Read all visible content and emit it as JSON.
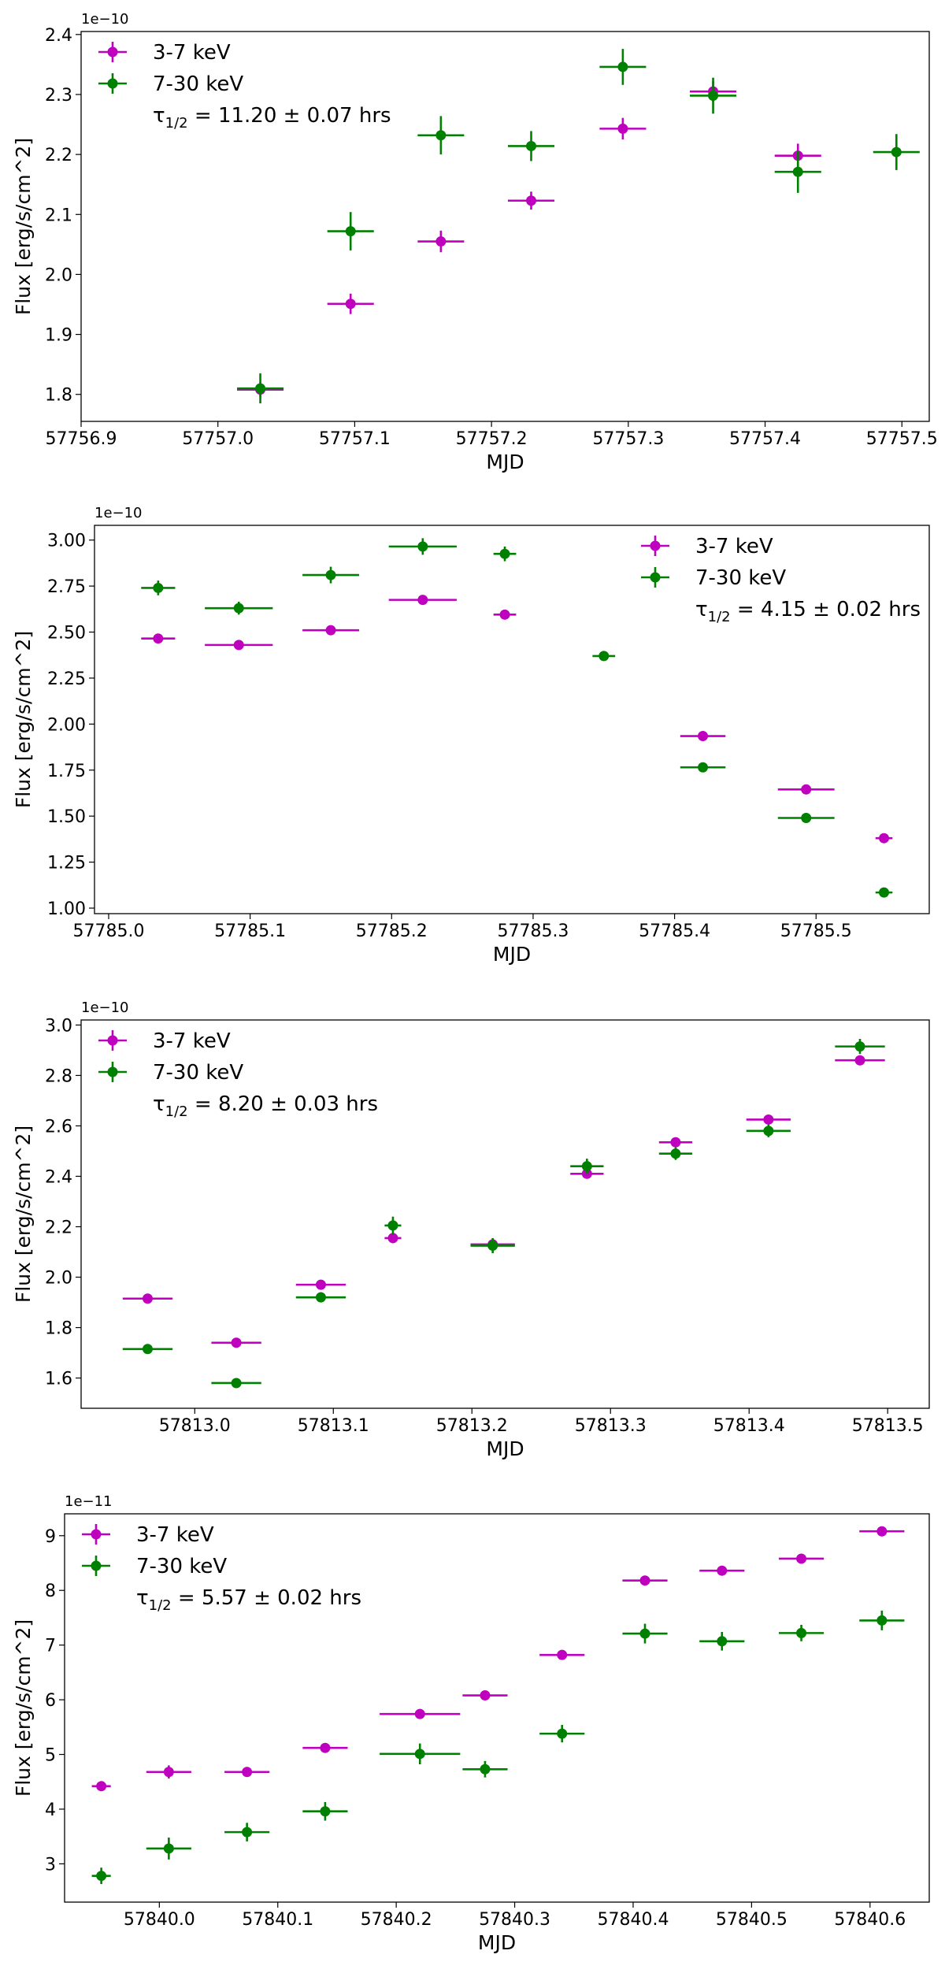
{
  "chart_data": [
    {
      "type": "scatter",
      "xlabel": "MJD",
      "ylabel": "Flux [erg/s/cm^2]",
      "offset_label": "1e−10",
      "annotation": "τ",
      "annotation_sub": "1/2",
      "annotation_rest": " = 11.20 ± 0.07 hrs",
      "xlim": [
        57756.9,
        57757.52
      ],
      "ylim": [
        1.755,
        2.405
      ],
      "xticks": [
        57756.9,
        57757.0,
        57757.1,
        57757.2,
        57757.3,
        57757.4,
        57757.5
      ],
      "xtick_labels": [
        "57756.9",
        "57757.0",
        "57757.1",
        "57757.2",
        "57757.3",
        "57757.4",
        "57757.5"
      ],
      "yticks": [
        1.8,
        1.9,
        2.0,
        2.1,
        2.2,
        2.3,
        2.4
      ],
      "ytick_labels": [
        "1.8",
        "1.9",
        "2.0",
        "2.1",
        "2.2",
        "2.3",
        "2.4"
      ],
      "legend_loc": "upper-left",
      "series": [
        {
          "name": "3-7 keV",
          "color": "#bf00bf",
          "x": [
            57757.031,
            57757.097,
            57757.163,
            57757.229,
            57757.296,
            57757.362,
            57757.424
          ],
          "y": [
            1.808,
            1.951,
            2.055,
            2.123,
            2.243,
            2.305,
            2.198
          ],
          "xerr": [
            0.017,
            0.017,
            0.017,
            0.017,
            0.017,
            0.017,
            0.017
          ],
          "yerr": [
            0.012,
            0.017,
            0.018,
            0.015,
            0.018,
            0.017,
            0.02
          ]
        },
        {
          "name": "7-30 keV",
          "color": "#008000",
          "x": [
            57757.031,
            57757.097,
            57757.163,
            57757.229,
            57757.296,
            57757.362,
            57757.424,
            57757.496
          ],
          "y": [
            1.81,
            2.072,
            2.232,
            2.214,
            2.346,
            2.298,
            2.171,
            2.204
          ],
          "xerr": [
            0.017,
            0.017,
            0.017,
            0.017,
            0.017,
            0.017,
            0.017,
            0.017
          ],
          "yerr": [
            0.025,
            0.032,
            0.032,
            0.025,
            0.03,
            0.03,
            0.035,
            0.03
          ]
        }
      ]
    },
    {
      "type": "scatter",
      "xlabel": "MJD",
      "ylabel": "Flux [erg/s/cm^2]",
      "offset_label": "1e−10",
      "annotation": "τ",
      "annotation_sub": "1/2",
      "annotation_rest": " = 4.15 ± 0.02 hrs",
      "xlim": [
        57784.99,
        57785.58
      ],
      "ylim": [
        0.97,
        3.08
      ],
      "xticks": [
        57785.0,
        57785.1,
        57785.2,
        57785.3,
        57785.4,
        57785.5
      ],
      "xtick_labels": [
        "57785.0",
        "57785.1",
        "57785.2",
        "57785.3",
        "57785.4",
        "57785.5"
      ],
      "yticks": [
        1.0,
        1.25,
        1.5,
        1.75,
        2.0,
        2.25,
        2.5,
        2.75,
        3.0
      ],
      "ytick_labels": [
        "1.00",
        "1.25",
        "1.50",
        "1.75",
        "2.00",
        "2.25",
        "2.50",
        "2.75",
        "3.00"
      ],
      "legend_loc": "upper-right",
      "series": [
        {
          "name": "3-7 keV",
          "color": "#bf00bf",
          "x": [
            57785.035,
            57785.092,
            57785.157,
            57785.222,
            57785.28,
            57785.42,
            57785.493,
            57785.548
          ],
          "y": [
            2.465,
            2.43,
            2.51,
            2.675,
            2.595,
            1.935,
            1.645,
            1.38
          ],
          "xerr": [
            0.012,
            0.024,
            0.02,
            0.024,
            0.008,
            0.016,
            0.02,
            0.006
          ],
          "yerr": [
            0.015,
            0.012,
            0.012,
            0.012,
            0.015,
            0.015,
            0.012,
            0.015
          ]
        },
        {
          "name": "7-30 keV",
          "color": "#008000",
          "x": [
            57785.035,
            57785.092,
            57785.157,
            57785.222,
            57785.28,
            57785.35,
            57785.42,
            57785.493,
            57785.548
          ],
          "y": [
            2.74,
            2.63,
            2.81,
            2.965,
            2.925,
            2.37,
            1.765,
            1.49,
            1.085
          ],
          "xerr": [
            0.012,
            0.024,
            0.02,
            0.024,
            0.008,
            0.008,
            0.016,
            0.02,
            0.006
          ],
          "yerr": [
            0.04,
            0.035,
            0.045,
            0.045,
            0.04,
            0.025,
            0.015,
            0.015,
            0.015
          ]
        }
      ]
    },
    {
      "type": "scatter",
      "xlabel": "MJD",
      "ylabel": "Flux [erg/s/cm^2]",
      "offset_label": "1e−10",
      "annotation": "τ",
      "annotation_sub": "1/2",
      "annotation_rest": " = 8.20 ± 0.03 hrs",
      "xlim": [
        57812.918,
        57813.53
      ],
      "ylim": [
        1.48,
        3.02
      ],
      "xticks": [
        57813.0,
        57813.1,
        57813.2,
        57813.3,
        57813.4,
        57813.5
      ],
      "xtick_labels": [
        "57813.0",
        "57813.1",
        "57813.2",
        "57813.3",
        "57813.4",
        "57813.5"
      ],
      "yticks": [
        1.6,
        1.8,
        2.0,
        2.2,
        2.4,
        2.6,
        2.8,
        3.0
      ],
      "ytick_labels": [
        "1.6",
        "1.8",
        "2.0",
        "2.2",
        "2.4",
        "2.6",
        "2.8",
        "3.0"
      ],
      "legend_loc": "upper-left",
      "series": [
        {
          "name": "3-7 keV",
          "color": "#bf00bf",
          "x": [
            57812.966,
            57813.03,
            57813.091,
            57813.143,
            57813.215,
            57813.283,
            57813.347,
            57813.414,
            57813.48
          ],
          "y": [
            1.915,
            1.74,
            1.97,
            2.155,
            2.13,
            2.41,
            2.535,
            2.625,
            2.86
          ],
          "xerr": [
            0.018,
            0.018,
            0.018,
            0.006,
            0.016,
            0.012,
            0.012,
            0.016,
            0.018
          ],
          "yerr": [
            0.015,
            0.015,
            0.015,
            0.02,
            0.02,
            0.015,
            0.015,
            0.015,
            0.015
          ]
        },
        {
          "name": "7-30 keV",
          "color": "#008000",
          "x": [
            57812.966,
            57813.03,
            57813.091,
            57813.143,
            57813.215,
            57813.283,
            57813.347,
            57813.414,
            57813.48
          ],
          "y": [
            1.715,
            1.58,
            1.92,
            2.205,
            2.125,
            2.44,
            2.49,
            2.58,
            2.915
          ],
          "xerr": [
            0.018,
            0.018,
            0.018,
            0.006,
            0.016,
            0.012,
            0.012,
            0.016,
            0.018
          ],
          "yerr": [
            0.015,
            0.015,
            0.02,
            0.035,
            0.03,
            0.03,
            0.025,
            0.025,
            0.03
          ]
        }
      ]
    },
    {
      "type": "scatter",
      "xlabel": "MJD",
      "ylabel": "Flux [erg/s/cm^2]",
      "offset_label": "1e−11",
      "annotation": "τ",
      "annotation_sub": "1/2",
      "annotation_rest": " = 5.57 ± 0.02 hrs",
      "xlim": [
        57839.92,
        57840.65
      ],
      "ylim": [
        2.3,
        9.4
      ],
      "xticks": [
        57840.0,
        57840.1,
        57840.2,
        57840.3,
        57840.4,
        57840.5,
        57840.6
      ],
      "xtick_labels": [
        "57840.0",
        "57840.1",
        "57840.2",
        "57840.3",
        "57840.4",
        "57840.5",
        "57840.6"
      ],
      "yticks": [
        3,
        4,
        5,
        6,
        7,
        8,
        9
      ],
      "ytick_labels": [
        "3",
        "4",
        "5",
        "6",
        "7",
        "8",
        "9"
      ],
      "legend_loc": "upper-left",
      "series": [
        {
          "name": "3-7 keV",
          "color": "#bf00bf",
          "x": [
            57839.951,
            57840.008,
            57840.074,
            57840.14,
            57840.22,
            57840.275,
            57840.34,
            57840.41,
            57840.475,
            57840.542,
            57840.61
          ],
          "y": [
            4.42,
            4.68,
            4.68,
            5.12,
            5.74,
            6.08,
            6.82,
            8.18,
            8.36,
            8.58,
            9.08
          ],
          "xerr": [
            0.008,
            0.019,
            0.019,
            0.019,
            0.034,
            0.019,
            0.019,
            0.019,
            0.019,
            0.019,
            0.019
          ],
          "yerr": [
            0.08,
            0.12,
            0.08,
            0.08,
            0.08,
            0.08,
            0.08,
            0.08,
            0.08,
            0.08,
            0.08
          ]
        },
        {
          "name": "7-30 keV",
          "color": "#008000",
          "x": [
            57839.951,
            57840.008,
            57840.074,
            57840.14,
            57840.22,
            57840.275,
            57840.34,
            57840.41,
            57840.475,
            57840.542,
            57840.61
          ],
          "y": [
            2.78,
            3.28,
            3.58,
            3.96,
            5.01,
            4.73,
            5.38,
            7.21,
            7.07,
            7.22,
            7.45
          ],
          "xerr": [
            0.008,
            0.019,
            0.019,
            0.019,
            0.034,
            0.019,
            0.019,
            0.019,
            0.019,
            0.019,
            0.019
          ],
          "yerr": [
            0.15,
            0.2,
            0.17,
            0.17,
            0.19,
            0.15,
            0.16,
            0.18,
            0.17,
            0.15,
            0.18
          ]
        }
      ]
    }
  ]
}
